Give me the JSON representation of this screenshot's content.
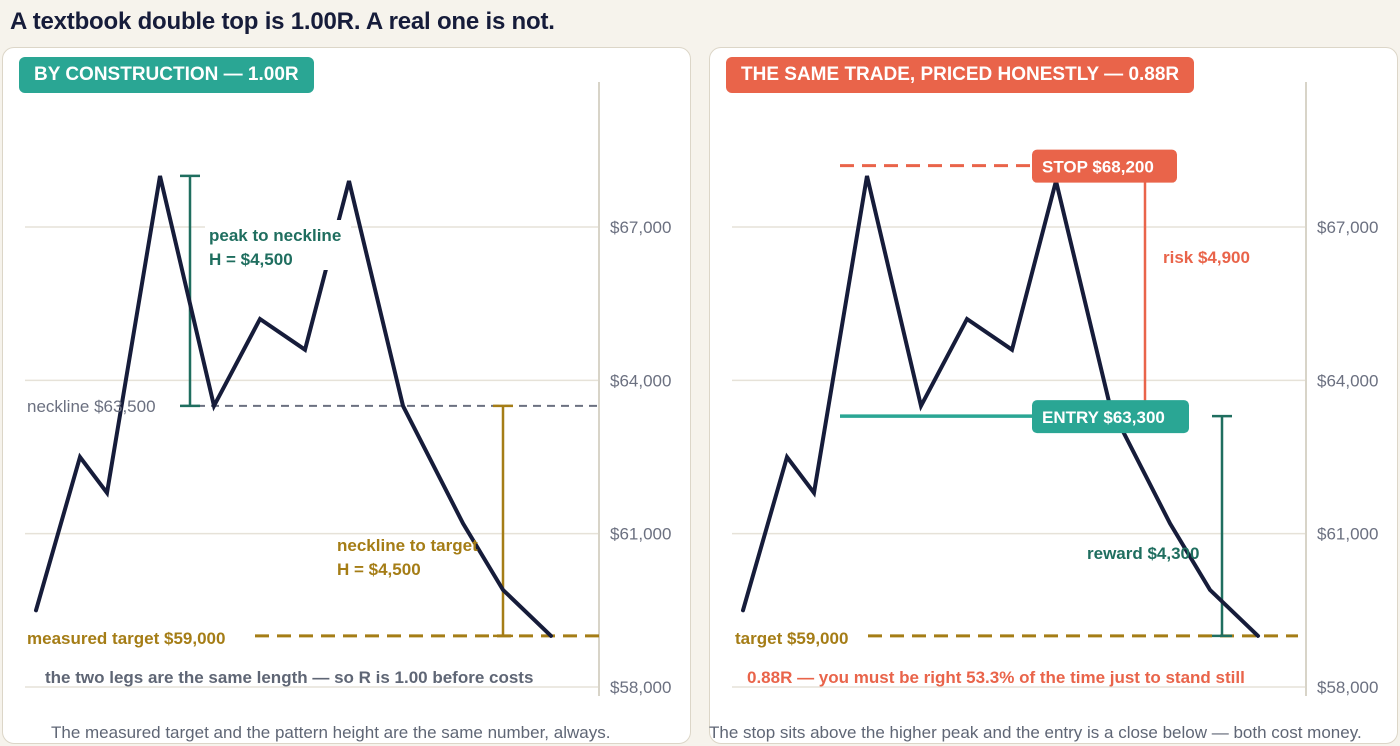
{
  "title": "A textbook double top is 1.00R. A real one is not.",
  "colors": {
    "teal": "#2aa694",
    "dark_teal": "#1f6e5f",
    "coral": "#e9644a",
    "gold": "#a57d16",
    "navy": "#161c3a",
    "grid": "#e6e2d8",
    "tick_text": "#6b7080"
  },
  "chart_data": [
    {
      "type": "line",
      "badge": "BY CONSTRUCTION — 1.00R",
      "caption": "The measured target and the pattern height are the same number, always.",
      "y_ticks": [
        67000,
        64000,
        61000,
        58000
      ],
      "y_tick_labels": [
        "$67,000",
        "$64,000",
        "$61,000",
        "$58,000"
      ],
      "ylim": [
        57800,
        68200
      ],
      "x_count": 12,
      "price_path": [
        59500,
        62500,
        61800,
        68000,
        63500,
        65200,
        64600,
        67900,
        63500,
        61200,
        59900,
        59000
      ],
      "neckline": {
        "value": 63500,
        "label": "neckline  $63,500"
      },
      "target": {
        "value": 59000,
        "label": "measured target  $59,000"
      },
      "peak_leg": {
        "from": 68000,
        "to": 63500,
        "label_line1": "peak to neckline",
        "label_line2": "H = $4,500"
      },
      "target_leg": {
        "from": 63500,
        "to": 59000,
        "label_line1": "neckline to target",
        "label_line2": "H = $4,500"
      },
      "note": "the two legs are the same length — so R is 1.00 before costs"
    },
    {
      "type": "line",
      "badge": "THE SAME TRADE, PRICED HONESTLY — 0.88R",
      "caption": "The stop sits above the higher peak and the entry is a close below — both cost money.",
      "y_ticks": [
        67000,
        64000,
        61000,
        58000
      ],
      "y_tick_labels": [
        "$67,000",
        "$64,000",
        "$61,000",
        "$58,000"
      ],
      "ylim": [
        57800,
        68200
      ],
      "x_count": 12,
      "price_path": [
        59500,
        62500,
        61800,
        68000,
        63500,
        65200,
        64600,
        67900,
        63500,
        61200,
        59900,
        59000
      ],
      "stop": {
        "value": 68200,
        "label": "STOP  $68,200"
      },
      "entry": {
        "value": 63300,
        "label": "ENTRY  $63,300"
      },
      "target": {
        "value": 59000,
        "label": "target  $59,000"
      },
      "risk_label": "risk $4,900",
      "reward_label": "reward $4,300",
      "note": "0.88R — you must be right 53.3% of the time just to stand still"
    }
  ]
}
